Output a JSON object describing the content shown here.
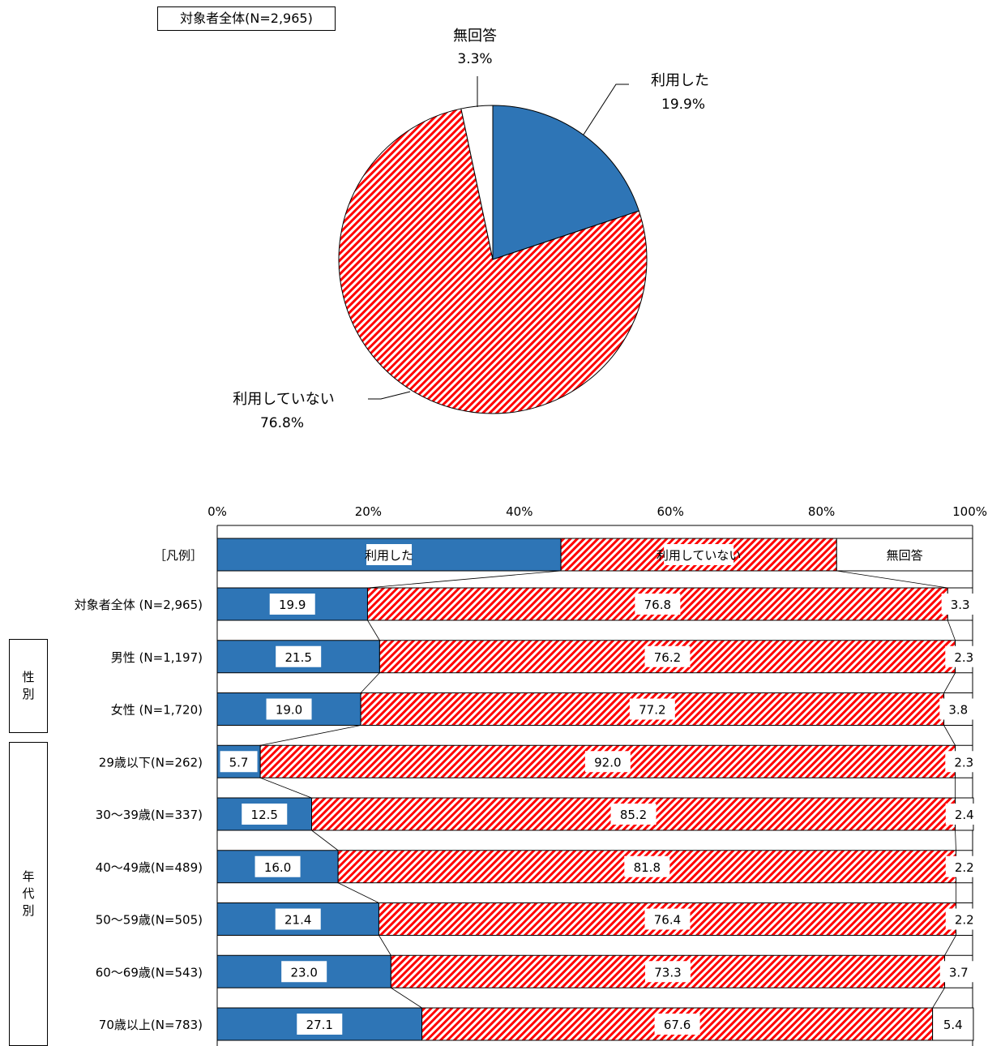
{
  "pie_header": "対象者全体(N=2,965)",
  "group_labels": {
    "sex": [
      "性",
      "別"
    ],
    "age": [
      "年",
      "代",
      "別"
    ]
  },
  "colors": {
    "used": "#2e75b6",
    "not_used_base": "#ffffff",
    "not_used_stripe": "#ff0000",
    "no_answer": "#ffffff"
  },
  "chart_data": [
    {
      "type": "pie",
      "title": "対象者全体(N=2,965)",
      "slices": [
        {
          "label": "利用した",
          "value": 19.9,
          "display": "19.9%"
        },
        {
          "label": "利用していない",
          "value": 76.8,
          "display": "76.8%"
        },
        {
          "label": "無回答",
          "value": 3.3,
          "display": "3.3%"
        }
      ]
    },
    {
      "type": "bar",
      "stacked": true,
      "orientation": "horizontal",
      "xlim": [
        0,
        100
      ],
      "ticks": [
        "0%",
        "20%",
        "40%",
        "60%",
        "80%",
        "100%"
      ],
      "legend_row": {
        "label": "［凡例］",
        "segments": [
          45.5,
          36.5,
          18.0
        ],
        "names": [
          "利用した",
          "利用していない",
          "無回答"
        ]
      },
      "categories": [
        "対象者全体 (N=2,965)",
        "男性 (N=1,197)",
        "女性 (N=1,720)",
        "29歳以下(N=262)",
        "30～39歳(N=337)",
        "40～49歳(N=489)",
        "50～59歳(N=505)",
        "60～69歳(N=543)",
        "70歳以上(N=783)"
      ],
      "series": [
        {
          "name": "利用した",
          "values": [
            19.9,
            21.5,
            19.0,
            5.7,
            12.5,
            16.0,
            21.4,
            23.0,
            27.1
          ],
          "labels": [
            "19.9",
            "21.5",
            "19.0",
            "5.7",
            "12.5",
            "16.0",
            "21.4",
            "23.0",
            "27.1"
          ]
        },
        {
          "name": "利用していない",
          "values": [
            76.8,
            76.2,
            77.2,
            92.0,
            85.2,
            81.8,
            76.4,
            73.3,
            67.6
          ],
          "labels": [
            "76.8",
            "76.2",
            "77.2",
            "92.0",
            "85.2",
            "81.8",
            "76.4",
            "73.3",
            "67.6"
          ]
        },
        {
          "name": "無回答",
          "values": [
            3.3,
            2.3,
            3.8,
            2.3,
            2.4,
            2.2,
            2.2,
            3.7,
            5.4
          ],
          "labels": [
            "3.3",
            "2.3",
            "3.8",
            "2.3",
            "2.4",
            "2.2",
            "2.2",
            "3.7",
            "5.4"
          ]
        }
      ]
    }
  ]
}
